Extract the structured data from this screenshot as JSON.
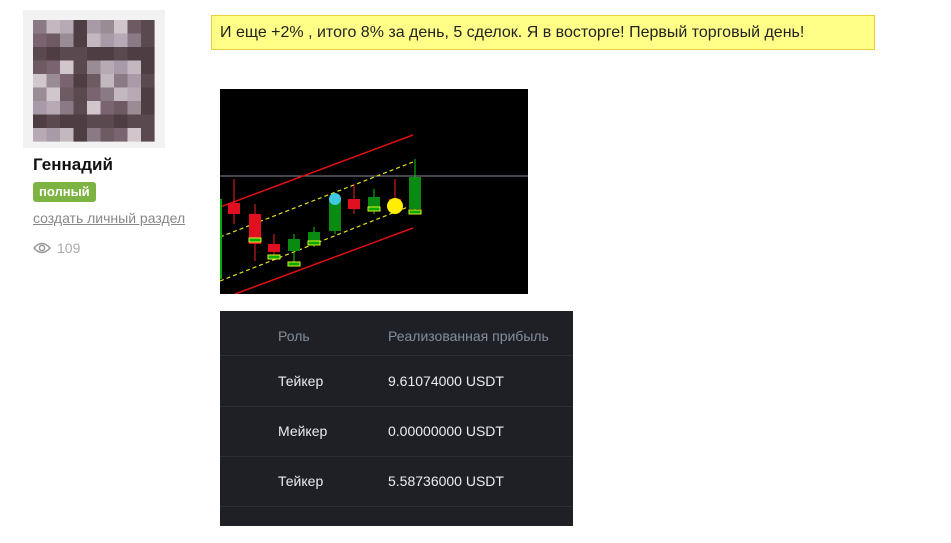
{
  "user": {
    "name": "Геннадий",
    "badge": "полный",
    "link": "создать личный раздел",
    "views": 109
  },
  "post": {
    "text": "И еще +2% , итого 8% за день, 5 сделок. Я в восторге! Первый торговый день!"
  },
  "table": {
    "headers": [
      "Роль",
      "Реализованная прибыль"
    ],
    "rows": [
      [
        "Тейкер",
        "9.61074000 USDT"
      ],
      [
        "Мейкер",
        "0.00000000 USDT"
      ],
      [
        "Тейкер",
        "5.58736000 USDT"
      ]
    ]
  }
}
